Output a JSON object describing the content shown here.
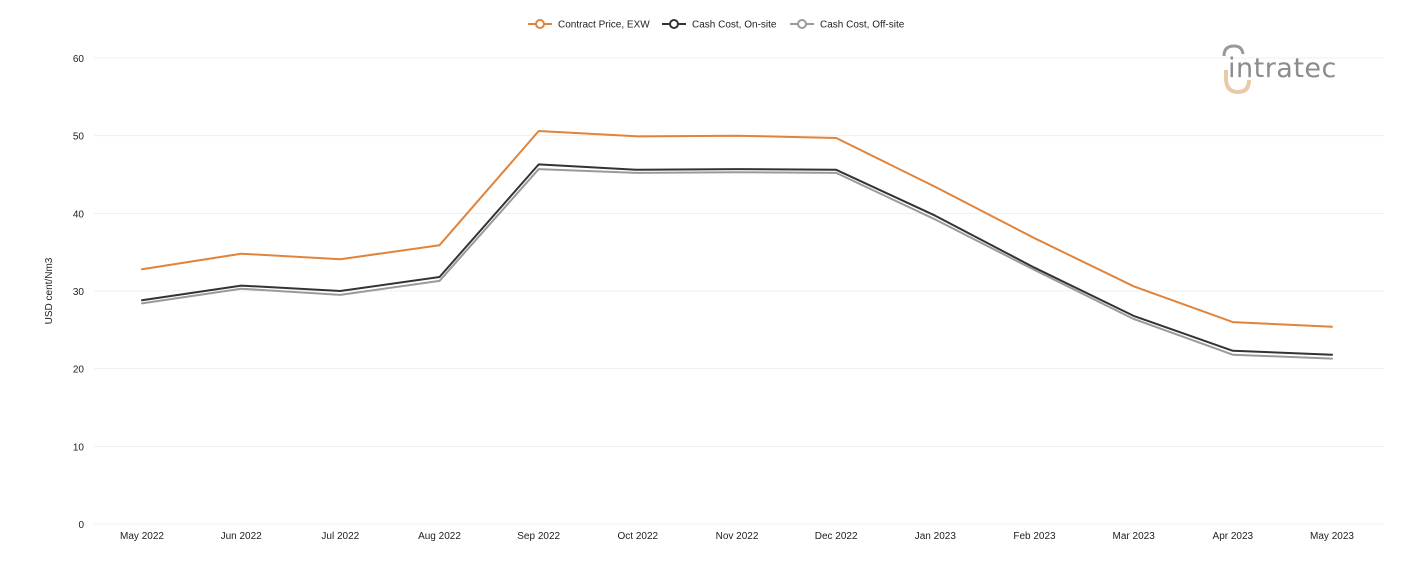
{
  "chart_data": {
    "type": "line",
    "title": "",
    "xlabel": "",
    "ylabel": "USD cent/Nm3",
    "ylim": [
      0,
      60
    ],
    "yticks": [
      0,
      10,
      20,
      30,
      40,
      50,
      60
    ],
    "grid": true,
    "legend_position": "top-center",
    "categories": [
      "May 2022",
      "Jun 2022",
      "Jul 2022",
      "Aug 2022",
      "Sep 2022",
      "Oct 2022",
      "Nov 2022",
      "Dec 2022",
      "Jan 2023",
      "Feb 2023",
      "Mar 2023",
      "Apr 2023",
      "May 2023"
    ],
    "series": [
      {
        "name": "Contract Price, EXW",
        "color": "#e0843c",
        "values": [
          32.8,
          34.8,
          34.1,
          35.9,
          50.6,
          49.9,
          50.0,
          49.7,
          43.4,
          36.8,
          30.6,
          26.0,
          25.4
        ]
      },
      {
        "name": "Cash Cost, On-site",
        "color": "#333333",
        "values": [
          28.8,
          30.7,
          30.0,
          31.8,
          46.3,
          45.6,
          45.7,
          45.6,
          39.7,
          33.0,
          26.8,
          22.3,
          21.8
        ]
      },
      {
        "name": "Cash Cost, Off-site",
        "color": "#9a9a9a",
        "values": [
          28.4,
          30.3,
          29.5,
          31.3,
          45.7,
          45.2,
          45.3,
          45.2,
          39.2,
          32.7,
          26.4,
          21.8,
          21.3
        ]
      }
    ]
  },
  "branding": {
    "logo_text": "intratec",
    "logo_color": "#8c8c8c",
    "logo_accent_color": "#e8c9a8"
  }
}
